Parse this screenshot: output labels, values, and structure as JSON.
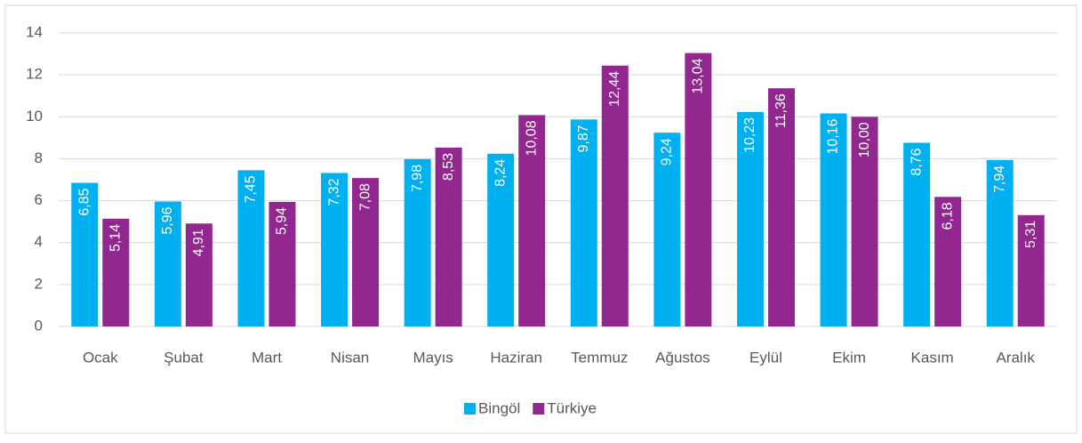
{
  "chart_data": {
    "type": "bar",
    "categories": [
      "Ocak",
      "Şubat",
      "Mart",
      "Nisan",
      "Mayıs",
      "Haziran",
      "Temmuz",
      "Ağustos",
      "Eylül",
      "Ekim",
      "Kasım",
      "Aralık"
    ],
    "series": [
      {
        "name": "Bingöl",
        "color": "#00b0f0",
        "values": [
          6.85,
          5.96,
          7.45,
          7.32,
          7.98,
          8.24,
          9.87,
          9.24,
          10.23,
          10.16,
          8.76,
          7.94
        ],
        "value_labels": [
          "6,85",
          "5,96",
          "7,45",
          "7,32",
          "7,98",
          "8,24",
          "9,87",
          "9,24",
          "10,23",
          "10,16",
          "8,76",
          "7,94"
        ]
      },
      {
        "name": "Türkiye",
        "color": "#92278f",
        "values": [
          5.14,
          4.91,
          5.94,
          7.08,
          8.53,
          10.08,
          12.44,
          13.04,
          11.36,
          10.0,
          6.18,
          5.31
        ],
        "value_labels": [
          "5,14",
          "4,91",
          "5,94",
          "7,08",
          "8,53",
          "10,08",
          "12,44",
          "13,04",
          "11,36",
          "10,00",
          "6,18",
          "5,31"
        ]
      }
    ],
    "ylim": [
      0,
      14
    ],
    "yticks": [
      0,
      2,
      4,
      6,
      8,
      10,
      12,
      14
    ],
    "grid": true,
    "legend": "bottom"
  }
}
